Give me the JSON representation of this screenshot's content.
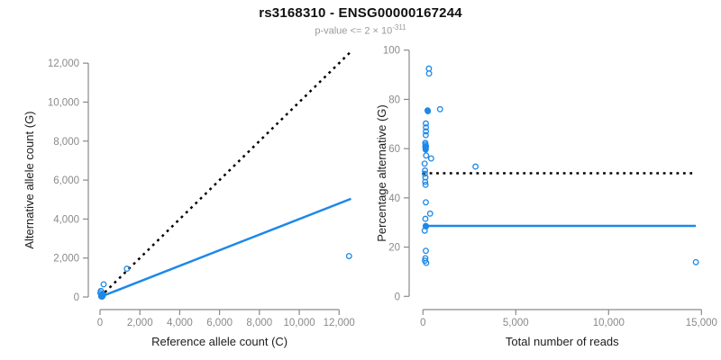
{
  "header": {
    "title": "rs3168310 - ENSG00000167244",
    "subtitle_prefix": "p-value <= 2 × 10",
    "subtitle_exponent": "-311"
  },
  "colors": {
    "accent": "#1E88E8",
    "dashed_line": "#000000",
    "axis": "#8a8a8a",
    "tick_label": "#8a8a8a",
    "axis_title": "#1c1c1c",
    "title": "#111111",
    "subtitle": "#9a9a9a"
  },
  "chart_data": [
    {
      "type": "scatter",
      "name": "allele-counts",
      "xlabel": "Reference allele count (C)",
      "ylabel": "Alternative allele count (G)",
      "xlim": [
        0,
        12600
      ],
      "ylim": [
        0,
        12700
      ],
      "grid": false,
      "x_ticks": {
        "values": [
          0,
          2000,
          4000,
          6000,
          8000,
          10000,
          12000
        ],
        "labels": [
          "0",
          "2,000",
          "4,000",
          "6,000",
          "8,000",
          "10,000",
          "12,000"
        ]
      },
      "y_ticks": {
        "values": [
          0,
          2000,
          4000,
          6000,
          8000,
          10000,
          12000
        ],
        "labels": [
          "0",
          "2,000",
          "4,000",
          "6,000",
          "8,000",
          "10,000",
          "12,000"
        ]
      },
      "lines": [
        {
          "name": "identity-line",
          "style": "dashed",
          "color": "#000000",
          "from": [
            0,
            0
          ],
          "to": [
            12550,
            12550
          ]
        },
        {
          "name": "fit-line",
          "style": "solid",
          "color": "#1E88E8",
          "from": [
            0,
            0
          ],
          "to": [
            12600,
            5040
          ]
        }
      ],
      "points": [
        [
          60,
          40,
          1
        ],
        [
          90,
          60,
          1
        ],
        [
          110,
          85,
          1
        ],
        [
          130,
          100,
          1
        ],
        [
          80,
          115
        ],
        [
          120,
          50,
          1
        ],
        [
          100,
          140
        ],
        [
          140,
          75
        ],
        [
          70,
          25,
          1
        ],
        [
          150,
          120
        ],
        [
          110,
          20
        ],
        [
          95,
          95,
          1
        ],
        [
          20,
          200
        ],
        [
          55,
          300
        ],
        [
          40,
          310
        ],
        [
          180,
          650
        ],
        [
          1350,
          1450
        ],
        [
          12500,
          2100
        ]
      ]
    },
    {
      "type": "scatter",
      "name": "percentage-vs-reads",
      "xlabel": "Total number of reads",
      "ylabel": "Percentage alternative (G)",
      "xlim": [
        0,
        15000
      ],
      "ylim": [
        0,
        100
      ],
      "grid": false,
      "x_ticks": {
        "values": [
          0,
          5000,
          10000,
          15000
        ],
        "labels": [
          "0",
          "5,000",
          "10,000",
          "15,000"
        ]
      },
      "y_ticks": {
        "values": [
          0,
          20,
          40,
          60,
          80,
          100
        ],
        "labels": [
          "0",
          "20",
          "40",
          "60",
          "80",
          "100"
        ]
      },
      "lines": [
        {
          "name": "fifty-percent-line",
          "style": "dashed",
          "color": "#000000",
          "from": [
            0,
            50
          ],
          "to": [
            14700,
            50
          ]
        },
        {
          "name": "mean-percentage-line",
          "style": "solid",
          "color": "#1E88E8",
          "from": [
            0,
            28.6
          ],
          "to": [
            14700,
            28.6
          ]
        }
      ],
      "points": [
        [
          320,
          92.5
        ],
        [
          330,
          90.5
        ],
        [
          250,
          75.5,
          1
        ],
        [
          265,
          75.2
        ],
        [
          920,
          76
        ],
        [
          155,
          70.2
        ],
        [
          160,
          68.6
        ],
        [
          158,
          67
        ],
        [
          150,
          65.5
        ],
        [
          125,
          62.3
        ],
        [
          140,
          61.6
        ],
        [
          160,
          61
        ],
        [
          130,
          60.6
        ],
        [
          150,
          60.2,
          1
        ],
        [
          145,
          59.6,
          1
        ],
        [
          135,
          60.9
        ],
        [
          170,
          57.2
        ],
        [
          440,
          56
        ],
        [
          90,
          53.9
        ],
        [
          2830,
          52.7
        ],
        [
          110,
          51.1
        ],
        [
          100,
          49.8
        ],
        [
          130,
          48.3
        ],
        [
          120,
          46.5
        ],
        [
          140,
          45.3
        ],
        [
          155,
          38.2
        ],
        [
          385,
          33.6
        ],
        [
          130,
          31.5
        ],
        [
          150,
          28.6,
          1
        ],
        [
          160,
          28.4
        ],
        [
          95,
          26.7
        ],
        [
          155,
          18.5
        ],
        [
          130,
          15.5
        ],
        [
          110,
          14.5
        ],
        [
          175,
          13.6
        ],
        [
          14700,
          13.9
        ]
      ]
    }
  ]
}
